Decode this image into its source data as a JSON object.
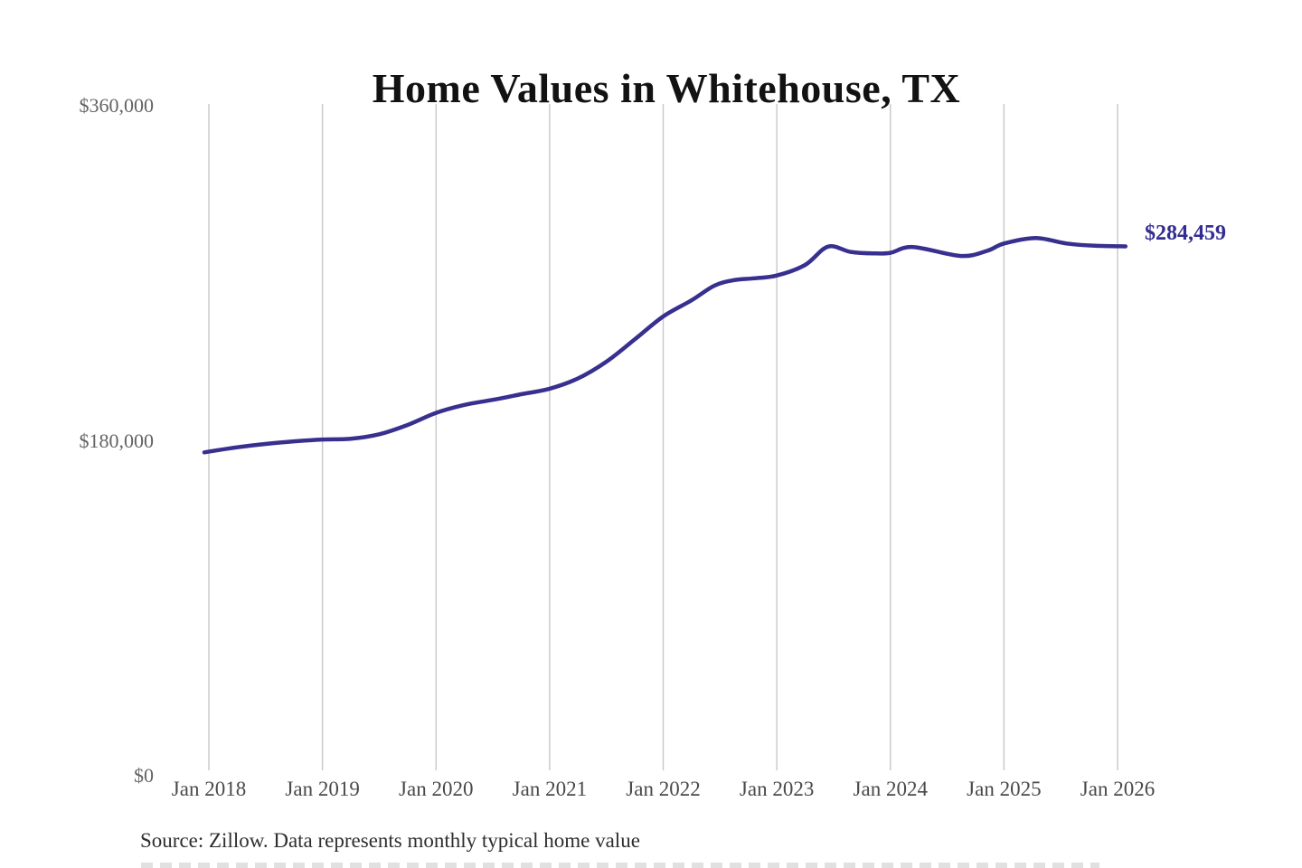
{
  "chart": {
    "title": "Home Values in Whitehouse, TX",
    "end_label": "$284,459",
    "source_note": "Source: Zillow. Data represents monthly typical home value",
    "colors": {
      "line": "#37308f",
      "grid": "#c7c7c7",
      "title": "#121212",
      "y_tick_text": "#636363",
      "x_tick_text": "#4a4a4a",
      "source_text": "#2e2e2e",
      "end_label_text": "#322d90",
      "background": "#ffffff"
    }
  },
  "chart_data": {
    "type": "line",
    "title": "Home Values in Whitehouse, TX",
    "xlabel": "",
    "ylabel": "",
    "xlim": [
      2018,
      2026
    ],
    "ylim": [
      0,
      360000
    ],
    "grid": "vertical-only",
    "legend": "none",
    "x_ticks": [
      "Jan 2018",
      "Jan 2019",
      "Jan 2020",
      "Jan 2021",
      "Jan 2022",
      "Jan 2023",
      "Jan 2024",
      "Jan 2025",
      "Jan 2026"
    ],
    "y_ticks": [
      {
        "label": "$360,000",
        "value": 360000
      },
      {
        "label": "$180,000",
        "value": 180000
      },
      {
        "label": "$0",
        "value": 0
      }
    ],
    "last_value": 284459,
    "last_value_label": "$284,459",
    "series": [
      {
        "name": "Monthly typical home value",
        "color": "#37308f",
        "points": [
          {
            "x": 2017.96,
            "y": 173800
          },
          {
            "x": 2018.25,
            "y": 176500
          },
          {
            "x": 2018.5,
            "y": 178300
          },
          {
            "x": 2018.75,
            "y": 179700
          },
          {
            "x": 2019.0,
            "y": 180700
          },
          {
            "x": 2019.25,
            "y": 181100
          },
          {
            "x": 2019.5,
            "y": 183500
          },
          {
            "x": 2019.75,
            "y": 188500
          },
          {
            "x": 2020.0,
            "y": 195000
          },
          {
            "x": 2020.25,
            "y": 199300
          },
          {
            "x": 2020.5,
            "y": 202000
          },
          {
            "x": 2020.75,
            "y": 205000
          },
          {
            "x": 2021.0,
            "y": 208000
          },
          {
            "x": 2021.25,
            "y": 213500
          },
          {
            "x": 2021.5,
            "y": 222500
          },
          {
            "x": 2021.75,
            "y": 234500
          },
          {
            "x": 2022.0,
            "y": 246800
          },
          {
            "x": 2022.25,
            "y": 255500
          },
          {
            "x": 2022.45,
            "y": 263300
          },
          {
            "x": 2022.62,
            "y": 266300
          },
          {
            "x": 2022.8,
            "y": 267300
          },
          {
            "x": 2023.0,
            "y": 268800
          },
          {
            "x": 2023.25,
            "y": 274500
          },
          {
            "x": 2023.45,
            "y": 284300
          },
          {
            "x": 2023.65,
            "y": 281500
          },
          {
            "x": 2023.85,
            "y": 280700
          },
          {
            "x": 2024.0,
            "y": 281000
          },
          {
            "x": 2024.2,
            "y": 284100
          },
          {
            "x": 2024.62,
            "y": 279300
          },
          {
            "x": 2024.85,
            "y": 282000
          },
          {
            "x": 2025.0,
            "y": 286000
          },
          {
            "x": 2025.28,
            "y": 288900
          },
          {
            "x": 2025.55,
            "y": 286000
          },
          {
            "x": 2025.8,
            "y": 284800
          },
          {
            "x": 2026.07,
            "y": 284459
          }
        ]
      }
    ]
  }
}
